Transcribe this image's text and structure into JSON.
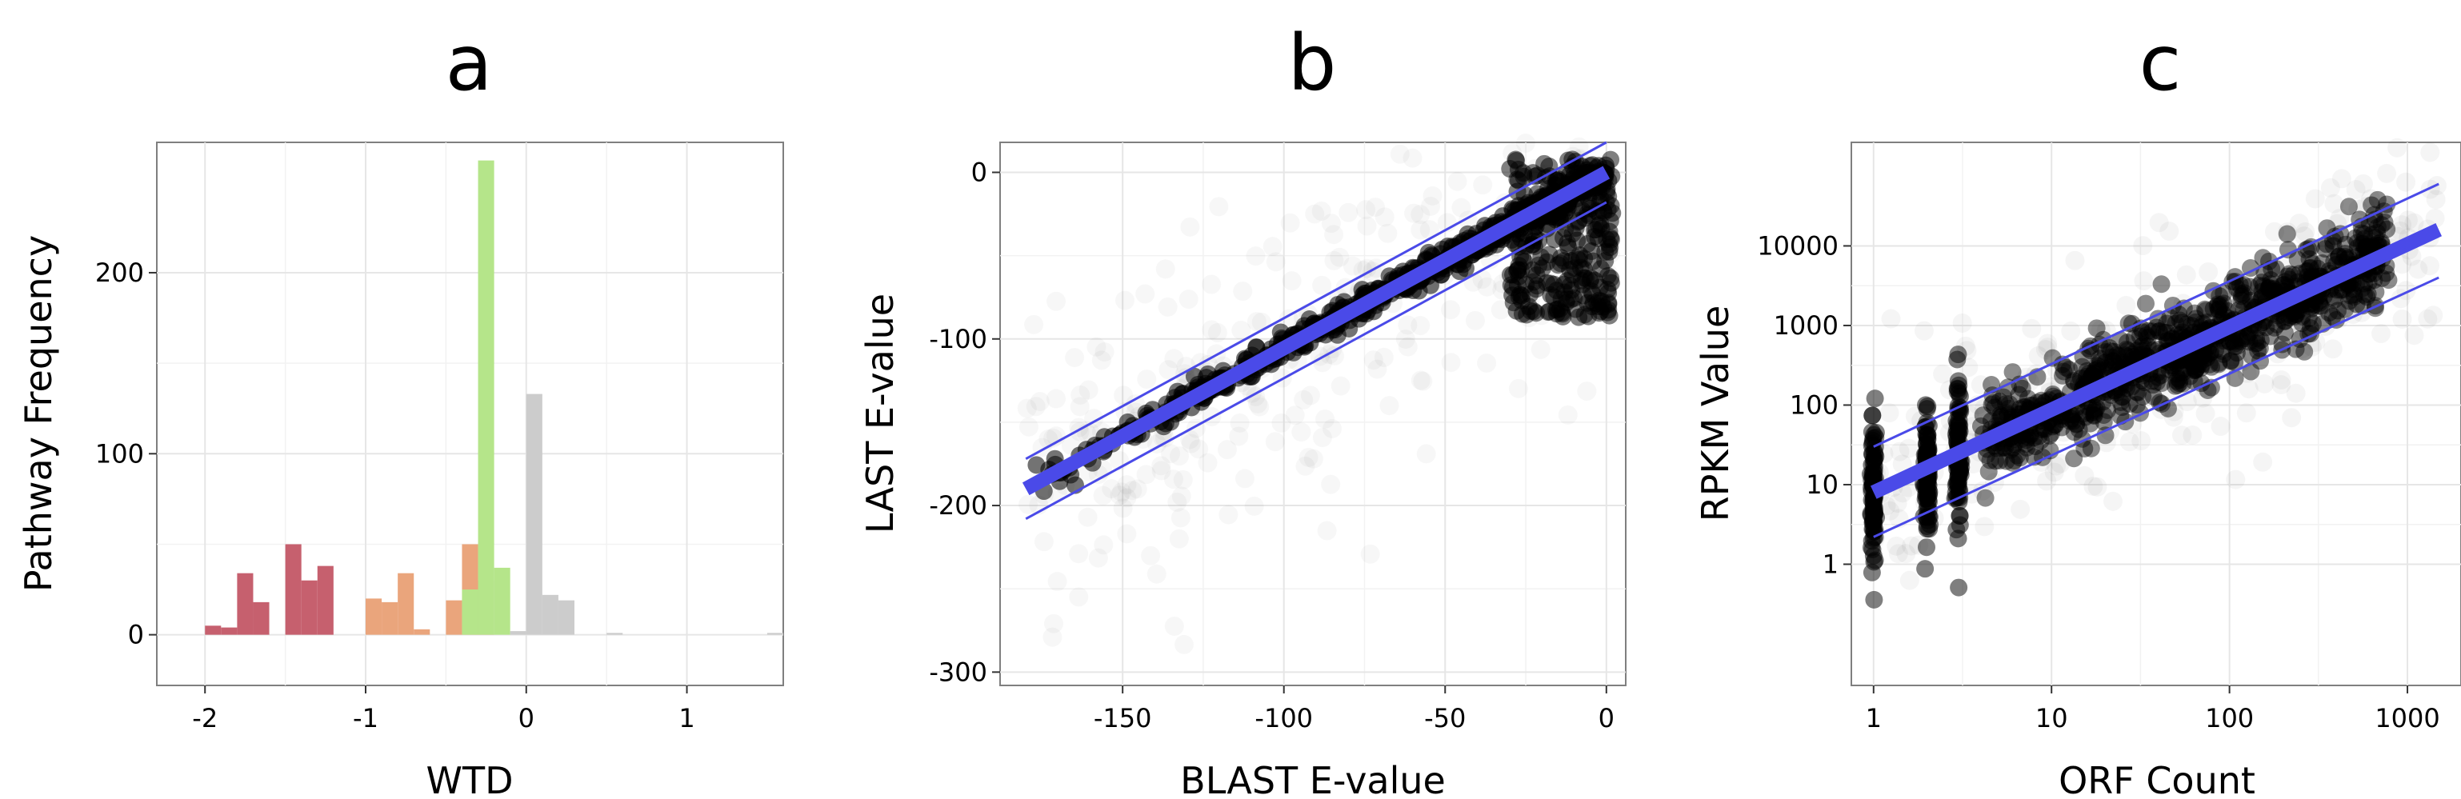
{
  "colors": {
    "grid": "#e6e6e6",
    "frame": "#7f7f7f",
    "fit_line": "#4a4ae8",
    "bar_red": "#c6606e",
    "bar_orange": "#eaa57c",
    "bar_green": "#b5e58a",
    "bar_grey": "#cccccc",
    "points": "#000000"
  },
  "chart_data": [
    {
      "panel": "a",
      "type": "bar",
      "xlabel": "WTD",
      "ylabel": "Pathway Frequency",
      "xlim": [
        -2.3,
        1.6
      ],
      "ylim": [
        -28,
        272
      ],
      "x_ticks": [
        -2,
        -1,
        0,
        1
      ],
      "x_tick_labels": [
        "-2",
        "-1",
        "0",
        "1"
      ],
      "y_ticks": [
        0,
        100,
        200
      ],
      "y_tick_labels": [
        "0",
        "100",
        "200"
      ],
      "bin_width": 0.1,
      "grid": true,
      "series": [
        {
          "color": "bar_red",
          "bars": [
            {
              "x": -1.95,
              "y": 5
            },
            {
              "x": -1.85,
              "y": 4
            },
            {
              "x": -1.75,
              "y": 34
            },
            {
              "x": -1.65,
              "y": 18
            },
            {
              "x": -1.45,
              "y": 50
            },
            {
              "x": -1.35,
              "y": 30
            },
            {
              "x": -1.25,
              "y": 38
            }
          ]
        },
        {
          "color": "bar_orange",
          "bars": [
            {
              "x": -0.95,
              "y": 20
            },
            {
              "x": -0.85,
              "y": 18
            },
            {
              "x": -0.75,
              "y": 34
            },
            {
              "x": -0.65,
              "y": 3
            },
            {
              "x": -0.45,
              "y": 19
            },
            {
              "x": -0.35,
              "y": 50
            },
            {
              "x": -0.25,
              "y": 30
            }
          ]
        },
        {
          "color": "bar_green",
          "bars": [
            {
              "x": -0.35,
              "y": 25
            },
            {
              "x": -0.25,
              "y": 262
            },
            {
              "x": -0.15,
              "y": 37
            }
          ]
        },
        {
          "color": "bar_grey",
          "bars": [
            {
              "x": -0.05,
              "y": 2
            },
            {
              "x": 0.05,
              "y": 133
            },
            {
              "x": 0.15,
              "y": 22
            },
            {
              "x": 0.25,
              "y": 19
            },
            {
              "x": 0.55,
              "y": 1
            },
            {
              "x": 1.55,
              "y": 1
            }
          ]
        }
      ]
    },
    {
      "panel": "b",
      "type": "scatter",
      "xlabel": "BLAST E-value",
      "ylabel": "LAST E-value",
      "xlim": [
        -188,
        6
      ],
      "ylim": [
        -308,
        18
      ],
      "x_ticks": [
        -150,
        -100,
        -50,
        0
      ],
      "x_tick_labels": [
        "-150",
        "-100",
        "-50",
        "0"
      ],
      "y_ticks": [
        0,
        -100,
        -200,
        -300
      ],
      "y_tick_labels": [
        "0",
        "-100",
        "-200",
        "-300"
      ],
      "grid": true,
      "fit": {
        "x0": -180,
        "y0": -190,
        "x1": 0,
        "y1": 0
      },
      "band": {
        "upper": [
          [
            -180,
            -172
          ],
          [
            0,
            18
          ]
        ],
        "lower": [
          [
            -180,
            -208
          ],
          [
            0,
            -18
          ]
        ]
      }
    },
    {
      "panel": "c",
      "type": "scatter",
      "xscale": "log",
      "yscale": "log",
      "xlabel": "ORF Count",
      "ylabel": "RPKM Value",
      "xlim": [
        0.75,
        2000
      ],
      "ylim": [
        0.03,
        200000
      ],
      "x_ticks": [
        1,
        10,
        100,
        1000
      ],
      "x_tick_labels": [
        "1",
        "10",
        "100",
        "1000"
      ],
      "y_ticks": [
        1,
        10,
        100,
        1000,
        10000
      ],
      "y_tick_labels": [
        "1",
        "10",
        "100",
        "1000",
        "10000"
      ],
      "grid": true,
      "fit": {
        "x0": 1,
        "y0": 8,
        "x1": 1500,
        "y1": 16000
      },
      "band": {
        "upper": [
          [
            1,
            30
          ],
          [
            1500,
            60000
          ]
        ],
        "lower": [
          [
            1,
            2.2
          ],
          [
            1500,
            4000
          ]
        ]
      }
    }
  ],
  "panels": [
    {
      "letter": "a"
    },
    {
      "letter": "b"
    },
    {
      "letter": "c"
    }
  ]
}
